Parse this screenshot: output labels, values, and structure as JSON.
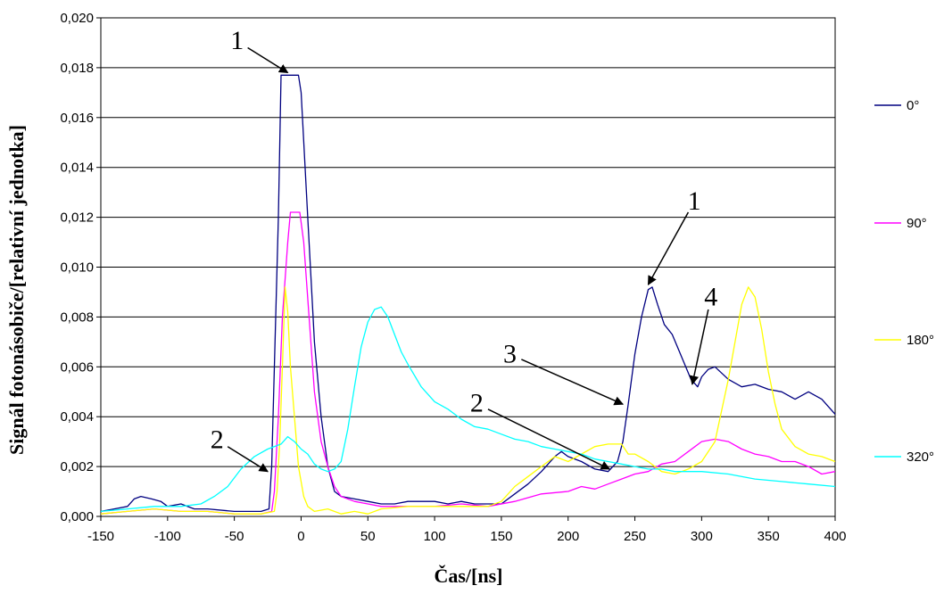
{
  "chart_data": {
    "type": "line",
    "title": "",
    "xlabel": "Čas/[ns]",
    "ylabel": "Signál fotonásobiče/[relativní jednotka]",
    "xlim": [
      -150,
      400
    ],
    "ylim": [
      0,
      0.02
    ],
    "x_ticks": [
      "-150",
      "-100",
      "-50",
      "0",
      "50",
      "100",
      "150",
      "200",
      "250",
      "300",
      "350",
      "400"
    ],
    "y_ticks": [
      "0,000",
      "0,002",
      "0,004",
      "0,006",
      "0,008",
      "0,010",
      "0,012",
      "0,014",
      "0,016",
      "0,018",
      "0,020"
    ],
    "grid": "horizontal",
    "legend_position": "right",
    "series": [
      {
        "name": "0°",
        "color": "#000080",
        "points": [
          [
            -150,
            0.0002
          ],
          [
            -140,
            0.0003
          ],
          [
            -130,
            0.0004
          ],
          [
            -125,
            0.0007
          ],
          [
            -120,
            0.0008
          ],
          [
            -112,
            0.0007
          ],
          [
            -105,
            0.0006
          ],
          [
            -100,
            0.0004
          ],
          [
            -90,
            0.0005
          ],
          [
            -80,
            0.0003
          ],
          [
            -70,
            0.0003
          ],
          [
            -50,
            0.0002
          ],
          [
            -30,
            0.0002
          ],
          [
            -24,
            0.0003
          ],
          [
            -22,
            0.002
          ],
          [
            -20,
            0.006
          ],
          [
            -17,
            0.012
          ],
          [
            -15,
            0.0177
          ],
          [
            -5,
            0.0177
          ],
          [
            -2,
            0.0177
          ],
          [
            0,
            0.017
          ],
          [
            5,
            0.012
          ],
          [
            10,
            0.007
          ],
          [
            15,
            0.004
          ],
          [
            20,
            0.002
          ],
          [
            25,
            0.001
          ],
          [
            30,
            0.0008
          ],
          [
            40,
            0.0007
          ],
          [
            50,
            0.0006
          ],
          [
            60,
            0.0005
          ],
          [
            70,
            0.0005
          ],
          [
            80,
            0.0006
          ],
          [
            90,
            0.0006
          ],
          [
            100,
            0.0006
          ],
          [
            110,
            0.0005
          ],
          [
            120,
            0.0006
          ],
          [
            130,
            0.0005
          ],
          [
            140,
            0.0005
          ],
          [
            150,
            0.0005
          ],
          [
            160,
            0.0009
          ],
          [
            170,
            0.0013
          ],
          [
            180,
            0.0018
          ],
          [
            190,
            0.0024
          ],
          [
            195,
            0.0026
          ],
          [
            200,
            0.0024
          ],
          [
            210,
            0.0022
          ],
          [
            220,
            0.0019
          ],
          [
            230,
            0.0018
          ],
          [
            237,
            0.0022
          ],
          [
            241,
            0.003
          ],
          [
            245,
            0.0045
          ],
          [
            250,
            0.0065
          ],
          [
            255,
            0.008
          ],
          [
            260,
            0.0091
          ],
          [
            263,
            0.0092
          ],
          [
            267,
            0.0085
          ],
          [
            272,
            0.0077
          ],
          [
            278,
            0.0073
          ],
          [
            285,
            0.0064
          ],
          [
            292,
            0.0055
          ],
          [
            297,
            0.0052
          ],
          [
            300,
            0.0056
          ],
          [
            305,
            0.0059
          ],
          [
            310,
            0.006
          ],
          [
            320,
            0.0055
          ],
          [
            330,
            0.0052
          ],
          [
            340,
            0.0053
          ],
          [
            350,
            0.0051
          ],
          [
            360,
            0.005
          ],
          [
            370,
            0.0047
          ],
          [
            380,
            0.005
          ],
          [
            390,
            0.0047
          ],
          [
            400,
            0.0041
          ]
        ]
      },
      {
        "name": "90°",
        "color": "#ff00ff",
        "points": [
          [
            -150,
            0.0001
          ],
          [
            -130,
            0.0002
          ],
          [
            -110,
            0.0003
          ],
          [
            -90,
            0.0002
          ],
          [
            -70,
            0.0002
          ],
          [
            -50,
            0.0001
          ],
          [
            -30,
            0.0001
          ],
          [
            -22,
            0.0002
          ],
          [
            -20,
            0.001
          ],
          [
            -17,
            0.004
          ],
          [
            -14,
            0.008
          ],
          [
            -10,
            0.011
          ],
          [
            -8,
            0.0122
          ],
          [
            -1,
            0.0122
          ],
          [
            2,
            0.011
          ],
          [
            6,
            0.008
          ],
          [
            10,
            0.005
          ],
          [
            15,
            0.003
          ],
          [
            20,
            0.002
          ],
          [
            25,
            0.0012
          ],
          [
            30,
            0.0008
          ],
          [
            40,
            0.0006
          ],
          [
            50,
            0.0005
          ],
          [
            60,
            0.0004
          ],
          [
            80,
            0.0004
          ],
          [
            100,
            0.0004
          ],
          [
            120,
            0.0005
          ],
          [
            140,
            0.0004
          ],
          [
            160,
            0.0006
          ],
          [
            180,
            0.0009
          ],
          [
            200,
            0.001
          ],
          [
            210,
            0.0012
          ],
          [
            220,
            0.0011
          ],
          [
            230,
            0.0013
          ],
          [
            240,
            0.0015
          ],
          [
            250,
            0.0017
          ],
          [
            260,
            0.0018
          ],
          [
            270,
            0.0021
          ],
          [
            280,
            0.0022
          ],
          [
            290,
            0.0026
          ],
          [
            300,
            0.003
          ],
          [
            310,
            0.0031
          ],
          [
            320,
            0.003
          ],
          [
            330,
            0.0027
          ],
          [
            340,
            0.0025
          ],
          [
            350,
            0.0024
          ],
          [
            360,
            0.0022
          ],
          [
            370,
            0.0022
          ],
          [
            380,
            0.002
          ],
          [
            390,
            0.0017
          ],
          [
            400,
            0.0018
          ]
        ]
      },
      {
        "name": "180°",
        "color": "#ffff00",
        "points": [
          [
            -150,
            0.0001
          ],
          [
            -130,
            0.0002
          ],
          [
            -110,
            0.0003
          ],
          [
            -90,
            0.0002
          ],
          [
            -70,
            0.0002
          ],
          [
            -50,
            0.0001
          ],
          [
            -30,
            0.0001
          ],
          [
            -20,
            0.0002
          ],
          [
            -18,
            0.001
          ],
          [
            -16,
            0.003
          ],
          [
            -14,
            0.006
          ],
          [
            -12,
            0.0092
          ],
          [
            -10,
            0.0082
          ],
          [
            -8,
            0.006
          ],
          [
            -5,
            0.004
          ],
          [
            -2,
            0.002
          ],
          [
            2,
            0.0008
          ],
          [
            5,
            0.0004
          ],
          [
            10,
            0.0002
          ],
          [
            20,
            0.0003
          ],
          [
            30,
            0.0001
          ],
          [
            40,
            0.0002
          ],
          [
            50,
            0.0001
          ],
          [
            60,
            0.0003
          ],
          [
            80,
            0.0004
          ],
          [
            100,
            0.0004
          ],
          [
            120,
            0.0004
          ],
          [
            140,
            0.0004
          ],
          [
            150,
            0.0006
          ],
          [
            160,
            0.0012
          ],
          [
            170,
            0.0016
          ],
          [
            180,
            0.002
          ],
          [
            190,
            0.0024
          ],
          [
            200,
            0.0022
          ],
          [
            210,
            0.0025
          ],
          [
            220,
            0.0028
          ],
          [
            230,
            0.0029
          ],
          [
            240,
            0.0029
          ],
          [
            245,
            0.0025
          ],
          [
            250,
            0.0025
          ],
          [
            260,
            0.0022
          ],
          [
            270,
            0.0018
          ],
          [
            280,
            0.0017
          ],
          [
            290,
            0.0019
          ],
          [
            300,
            0.0022
          ],
          [
            310,
            0.003
          ],
          [
            320,
            0.0055
          ],
          [
            325,
            0.007
          ],
          [
            330,
            0.0085
          ],
          [
            335,
            0.0092
          ],
          [
            340,
            0.0088
          ],
          [
            345,
            0.0075
          ],
          [
            350,
            0.0058
          ],
          [
            355,
            0.0045
          ],
          [
            360,
            0.0035
          ],
          [
            370,
            0.0028
          ],
          [
            380,
            0.0025
          ],
          [
            390,
            0.0024
          ],
          [
            400,
            0.0022
          ]
        ]
      },
      {
        "name": "320°",
        "color": "#00ffff",
        "points": [
          [
            -150,
            0.0002
          ],
          [
            -130,
            0.0003
          ],
          [
            -110,
            0.0004
          ],
          [
            -90,
            0.0004
          ],
          [
            -75,
            0.0005
          ],
          [
            -65,
            0.0008
          ],
          [
            -55,
            0.0012
          ],
          [
            -45,
            0.0019
          ],
          [
            -35,
            0.0024
          ],
          [
            -25,
            0.0027
          ],
          [
            -15,
            0.0029
          ],
          [
            -10,
            0.0032
          ],
          [
            -5,
            0.003
          ],
          [
            0,
            0.0027
          ],
          [
            5,
            0.0025
          ],
          [
            10,
            0.0021
          ],
          [
            15,
            0.0019
          ],
          [
            20,
            0.0018
          ],
          [
            25,
            0.0019
          ],
          [
            30,
            0.0022
          ],
          [
            35,
            0.0035
          ],
          [
            40,
            0.0052
          ],
          [
            45,
            0.0068
          ],
          [
            50,
            0.0078
          ],
          [
            55,
            0.0083
          ],
          [
            60,
            0.0084
          ],
          [
            65,
            0.008
          ],
          [
            70,
            0.0073
          ],
          [
            75,
            0.0066
          ],
          [
            80,
            0.0061
          ],
          [
            90,
            0.0052
          ],
          [
            100,
            0.0046
          ],
          [
            110,
            0.0043
          ],
          [
            120,
            0.0039
          ],
          [
            130,
            0.0036
          ],
          [
            140,
            0.0035
          ],
          [
            150,
            0.0033
          ],
          [
            160,
            0.0031
          ],
          [
            170,
            0.003
          ],
          [
            180,
            0.0028
          ],
          [
            190,
            0.0027
          ],
          [
            200,
            0.0026
          ],
          [
            210,
            0.0025
          ],
          [
            220,
            0.0023
          ],
          [
            230,
            0.0022
          ],
          [
            240,
            0.0021
          ],
          [
            250,
            0.002
          ],
          [
            260,
            0.0019
          ],
          [
            270,
            0.0019
          ],
          [
            280,
            0.0018
          ],
          [
            290,
            0.0018
          ],
          [
            300,
            0.0018
          ],
          [
            320,
            0.0017
          ],
          [
            340,
            0.0015
          ],
          [
            360,
            0.0014
          ],
          [
            380,
            0.0013
          ],
          [
            400,
            0.0012
          ]
        ]
      }
    ],
    "annotations": [
      {
        "label": "1",
        "tip": [
          -10,
          0.0178
        ],
        "tail": [
          -40,
          0.0188
        ]
      },
      {
        "label": "2",
        "tip": [
          -25,
          0.0018
        ],
        "tail": [
          -55,
          0.0028
        ]
      },
      {
        "label": "1",
        "tip": [
          260,
          0.0093
        ],
        "tail": [
          290,
          0.0122
        ]
      },
      {
        "label": "4",
        "tip": [
          293,
          0.0053
        ],
        "tail": [
          305,
          0.0083
        ]
      },
      {
        "label": "3",
        "tip": [
          241,
          0.0045
        ],
        "tail": [
          165,
          0.0063
        ]
      },
      {
        "label": "2",
        "tip": [
          231,
          0.0019
        ],
        "tail": [
          140,
          0.0043
        ]
      }
    ]
  }
}
